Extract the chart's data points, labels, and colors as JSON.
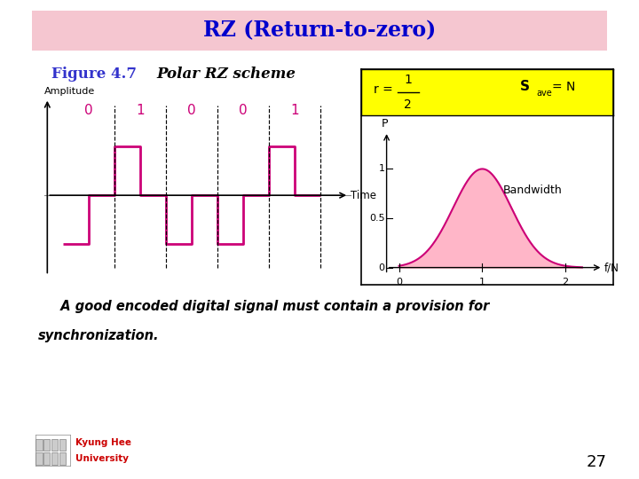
{
  "title": "RZ (Return-to-zero)",
  "title_bg": "#f5c6d0",
  "title_color": "#0000cc",
  "fig_label": "Figure 4.7",
  "fig_label_color": "#3333cc",
  "fig_desc": "Polar RZ scheme",
  "fig_desc_color": "#000000",
  "signal_color": "#cc0077",
  "bits": [
    0,
    1,
    0,
    0,
    1
  ],
  "bit_labels": [
    "0",
    "1",
    "0",
    "0",
    "1"
  ],
  "bit_color": "#cc0077",
  "bottom_text_line1": "  A good encoded digital signal must contain a provision for",
  "bottom_text_line2": "synchronization.",
  "bottom_text_color": "#000000",
  "page_num": "27",
  "bandwidth_label": "Bandwidth",
  "bg_color": "#ffffff",
  "yellow_bg": "#ffff00",
  "pink_fill": "#ffb6c8",
  "curve_color": "#cc0077"
}
